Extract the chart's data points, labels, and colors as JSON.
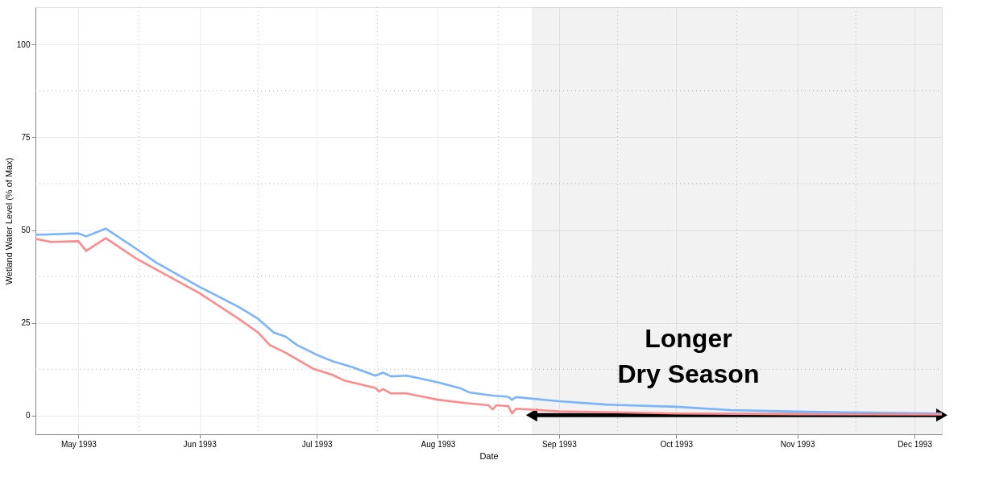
{
  "chart_data": {
    "type": "line",
    "xlabel": "Date",
    "ylabel": "Wetland Water Level (% of Max)",
    "xlim": [
      "1993-04-20",
      "1993-12-08"
    ],
    "xticks": [
      {
        "value": "1993-05-01",
        "label": "May 1993"
      },
      {
        "value": "1993-06-01",
        "label": "Jun 1993"
      },
      {
        "value": "1993-07-01",
        "label": "Jul 1993"
      },
      {
        "value": "1993-08-01",
        "label": "Aug 1993"
      },
      {
        "value": "1993-09-01",
        "label": "Sep 1993"
      },
      {
        "value": "1993-10-01",
        "label": "Oct 1993"
      },
      {
        "value": "1993-11-01",
        "label": "Nov 1993"
      },
      {
        "value": "1993-12-01",
        "label": "Dec 1993"
      }
    ],
    "ylim": [
      -5,
      110
    ],
    "yticks": [
      0,
      25,
      50,
      75,
      100
    ],
    "grid": true,
    "legend": false,
    "line_style": "solid",
    "marker": "none",
    "series": [
      {
        "color": "#7ab4ff",
        "x": [
          "1993-04-20",
          "1993-05-01",
          "1993-05-03",
          "1993-05-08",
          "1993-05-16",
          "1993-05-21",
          "1993-06-01",
          "1993-06-11",
          "1993-06-16",
          "1993-06-20",
          "1993-06-23",
          "1993-06-26",
          "1993-07-01",
          "1993-07-05",
          "1993-07-10",
          "1993-07-16",
          "1993-07-18",
          "1993-07-20",
          "1993-07-24",
          "1993-08-01",
          "1993-08-07",
          "1993-08-09",
          "1993-08-15",
          "1993-08-19",
          "1993-08-20",
          "1993-08-21",
          "1993-09-01",
          "1993-09-13",
          "1993-10-01",
          "1993-10-15",
          "1993-11-01",
          "1993-12-08"
        ],
        "values": [
          48.7,
          49.1,
          48.3,
          50.4,
          44.8,
          41.2,
          34.7,
          29.3,
          26.1,
          22.4,
          21.3,
          19,
          16.4,
          14.7,
          13.1,
          10.8,
          11.6,
          10.6,
          10.8,
          9,
          7.3,
          6.3,
          5.4,
          5.1,
          4.3,
          5,
          3.9,
          3,
          2.4,
          1.5,
          1.1,
          0.6
        ]
      },
      {
        "color": "#ff8a8a",
        "x": [
          "1993-04-20",
          "1993-04-24",
          "1993-05-01",
          "1993-05-03",
          "1993-05-08",
          "1993-05-16",
          "1993-05-19",
          "1993-06-01",
          "1993-06-11",
          "1993-06-16",
          "1993-06-19",
          "1993-06-23",
          "1993-06-30",
          "1993-07-05",
          "1993-07-08",
          "1993-07-16",
          "1993-07-17",
          "1993-07-18",
          "1993-07-20",
          "1993-07-24",
          "1993-08-01",
          "1993-08-08",
          "1993-08-14",
          "1993-08-15",
          "1993-08-16",
          "1993-08-19",
          "1993-08-20",
          "1993-08-21",
          "1993-09-01",
          "1993-10-01",
          "1993-11-01",
          "1993-12-08"
        ],
        "values": [
          47.6,
          46.8,
          47,
          44.4,
          47.8,
          42.2,
          40.5,
          33,
          26.1,
          22.4,
          19,
          17,
          12.7,
          11,
          9.5,
          7.5,
          6.5,
          7.2,
          6,
          6,
          4.3,
          3.4,
          2.8,
          1.7,
          2.8,
          2.6,
          0.6,
          1.9,
          1.2,
          0.6,
          0.4,
          0.3
        ]
      }
    ],
    "bands": [
      {
        "axis": "x",
        "from": "1993-08-25",
        "to": "1993-12-08",
        "label": "Longer Dry Season",
        "color": "#000000"
      }
    ]
  }
}
